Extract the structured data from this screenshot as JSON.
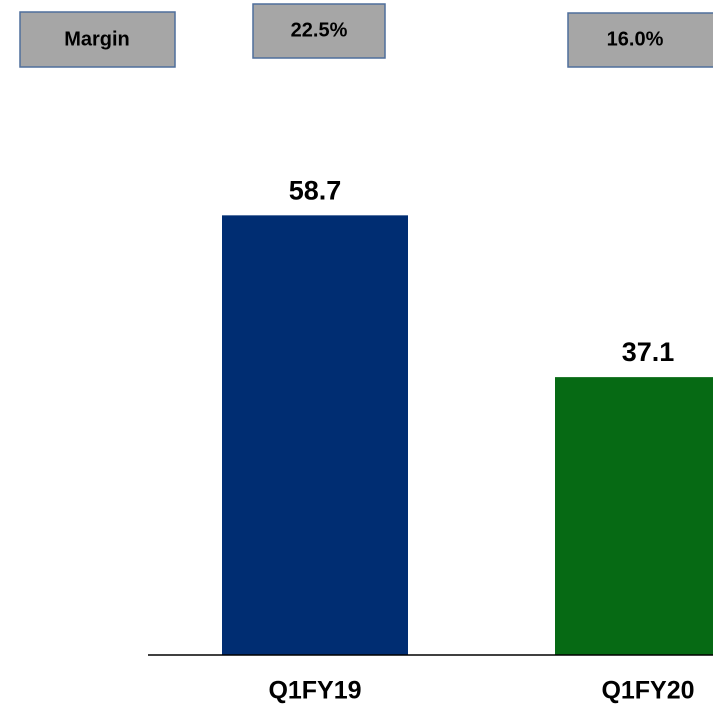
{
  "chart_data": {
    "type": "bar",
    "categories": [
      "Q1FY19",
      "Q1FY20"
    ],
    "values": [
      58.7,
      37.1
    ],
    "colors": [
      "#002d72",
      "#066a14"
    ],
    "margin": {
      "label": "Margin",
      "values": [
        22.5,
        16.0
      ],
      "value_labels": [
        "22.5%",
        "16.0%"
      ]
    }
  }
}
